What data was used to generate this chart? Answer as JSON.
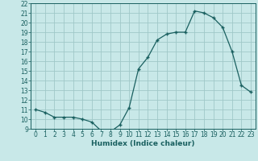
{
  "x": [
    0,
    1,
    2,
    3,
    4,
    5,
    6,
    7,
    8,
    9,
    10,
    11,
    12,
    13,
    14,
    15,
    16,
    17,
    18,
    19,
    20,
    21,
    22,
    23
  ],
  "y": [
    11.0,
    10.7,
    10.2,
    10.2,
    10.2,
    10.0,
    9.7,
    8.8,
    8.7,
    9.4,
    11.2,
    15.2,
    16.4,
    18.2,
    18.8,
    19.0,
    19.0,
    21.2,
    21.0,
    20.5,
    19.5,
    17.0,
    13.5,
    12.8
  ],
  "line_color": "#1a6060",
  "marker_color": "#1a6060",
  "bg_color": "#c8e8e8",
  "grid_color": "#a0c8c8",
  "xlabel": "Humidex (Indice chaleur)",
  "ylim": [
    9,
    22
  ],
  "xlim": [
    -0.5,
    23.5
  ],
  "yticks": [
    9,
    10,
    11,
    12,
    13,
    14,
    15,
    16,
    17,
    18,
    19,
    20,
    21,
    22
  ],
  "xticks": [
    0,
    1,
    2,
    3,
    4,
    5,
    6,
    7,
    8,
    9,
    10,
    11,
    12,
    13,
    14,
    15,
    16,
    17,
    18,
    19,
    20,
    21,
    22,
    23
  ]
}
